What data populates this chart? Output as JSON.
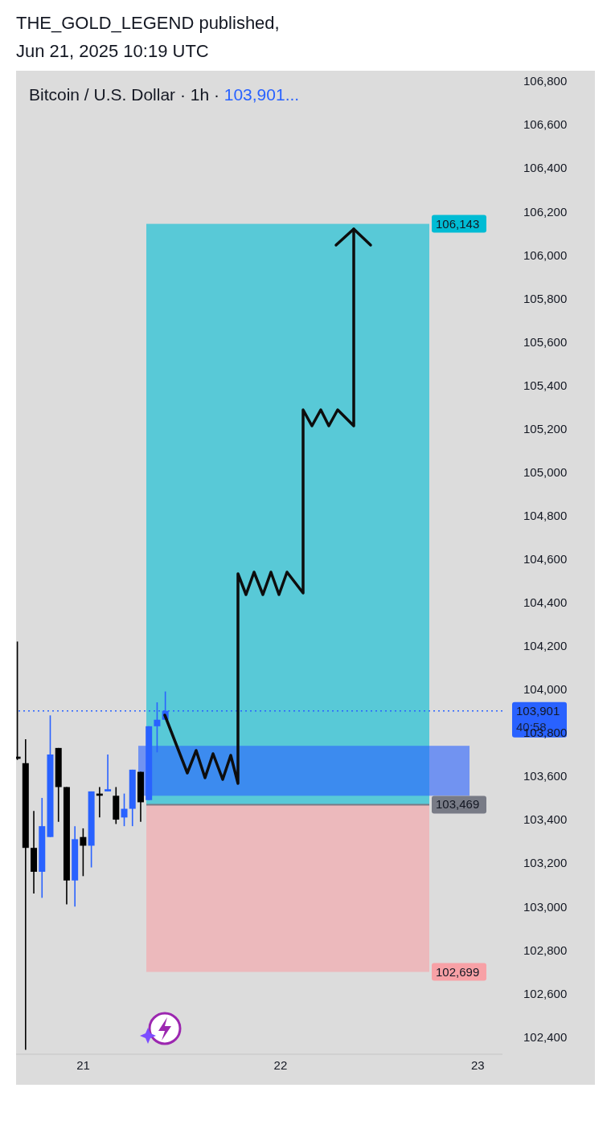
{
  "chart_data": {
    "type": "candlestick",
    "title": "THE_GOLD_LEGEND published,",
    "subtitle": "Jun 21, 2025 10:19 UTC",
    "annotations": [
      "Bitcoin / U.S. Dollar · 1h ·",
      "103,901...",
      "40:58"
    ],
    "x": [
      "2025-06-20T16:00",
      "2025-06-20T17:00",
      "2025-06-20T18:00",
      "2025-06-20T19:00",
      "2025-06-20T20:00",
      "2025-06-20T21:00",
      "2025-06-20T22:00",
      "2025-06-20T23:00",
      "2025-06-21T00:00",
      "2025-06-21T01:00",
      "2025-06-21T02:00",
      "2025-06-21T03:00",
      "2025-06-21T04:00",
      "2025-06-21T05:00",
      "2025-06-21T06:00",
      "2025-06-21T07:00",
      "2025-06-21T08:00",
      "2025-06-21T09:00",
      "2025-06-21T10:00"
    ],
    "ohlc": [
      [
        103690,
        104220,
        103675,
        103680
      ],
      [
        103660,
        103770,
        102340,
        103270
      ],
      [
        103270,
        103440,
        103060,
        103160
      ],
      [
        103160,
        103500,
        103040,
        103370
      ],
      [
        103320,
        103880,
        103320,
        103700
      ],
      [
        103730,
        103730,
        103390,
        103550
      ],
      [
        103550,
        103550,
        103010,
        103120
      ],
      [
        103120,
        103370,
        103000,
        103310
      ],
      [
        103320,
        103360,
        103140,
        103280
      ],
      [
        103280,
        103530,
        103180,
        103530
      ],
      [
        103520,
        103550,
        103410,
        103510
      ],
      [
        103530,
        103700,
        103530,
        103540
      ],
      [
        103510,
        103550,
        103380,
        103400
      ],
      [
        103410,
        103520,
        103370,
        103450
      ],
      [
        103450,
        103630,
        103370,
        103630
      ],
      [
        103620,
        103620,
        103390,
        103480
      ],
      [
        103490,
        103830,
        103490,
        103830
      ],
      [
        103830,
        103940,
        103710,
        103860
      ],
      [
        103860,
        103990,
        103860,
        103901
      ]
    ],
    "colors": [
      "#000000",
      "#000000",
      "#000000",
      "#2962ff",
      "#2962ff",
      "#000000",
      "#000000",
      "#2962ff",
      "#000000",
      "#2962ff",
      "#000000",
      "#2962ff",
      "#000000",
      "#2962ff",
      "#2962ff",
      "#000000",
      "#2962ff",
      "#2962ff",
      "#2962ff"
    ],
    "xlim": [
      "2025-06-20T15:50",
      "2025-06-23T03:00"
    ],
    "xticks": [
      {
        "value": "2025-06-21",
        "label": "21"
      },
      {
        "value": "2025-06-22",
        "label": "22"
      },
      {
        "value": "2025-06-23",
        "label": "23"
      }
    ],
    "ylim": [
      102320,
      106800
    ],
    "yticks": [
      {
        "value": 102400,
        "label": "102,400"
      },
      {
        "value": 102600,
        "label": "102,600"
      },
      {
        "value": 102800,
        "label": "102,800"
      },
      {
        "value": 103000,
        "label": "103,000"
      },
      {
        "value": 103200,
        "label": "103,200"
      },
      {
        "value": 103400,
        "label": "103,400"
      },
      {
        "value": 103600,
        "label": "103,600"
      },
      {
        "value": 103800,
        "label": "103,800"
      },
      {
        "value": 104000,
        "label": "104,000"
      },
      {
        "value": 104200,
        "label": "104,200"
      },
      {
        "value": 104400,
        "label": "104,400"
      },
      {
        "value": 104600,
        "label": "104,600"
      },
      {
        "value": 104800,
        "label": "104,800"
      },
      {
        "value": 105000,
        "label": "105,000"
      },
      {
        "value": 105200,
        "label": "105,200"
      },
      {
        "value": 105400,
        "label": "105,400"
      },
      {
        "value": 105600,
        "label": "105,600"
      },
      {
        "value": 105800,
        "label": "105,800"
      },
      {
        "value": 106000,
        "label": "106,000"
      },
      {
        "value": 106200,
        "label": "106,200"
      },
      {
        "value": 106400,
        "label": "106,400"
      },
      {
        "value": 106600,
        "label": "106,600"
      },
      {
        "value": 106800,
        "label": "106,800"
      }
    ],
    "bands": [
      {
        "axis": "y",
        "from": 103469,
        "to": 106143,
        "label": "106,143",
        "color": "#00bcd4"
      },
      {
        "axis": "y",
        "from": 102699,
        "to": 103469,
        "label": "102,699",
        "color": "#f7a1a6"
      },
      {
        "axis": "y",
        "from": 103510,
        "to": 103740,
        "color": "#2962ff"
      }
    ],
    "ref_lines": [
      {
        "axis": "y",
        "value": 103901,
        "label": "103,901",
        "color": "#2962ff",
        "line_style": "dotted"
      },
      {
        "axis": "y",
        "value": 103469,
        "label": "103,469",
        "color": "#787b86",
        "line_style": "solid"
      }
    ]
  }
}
